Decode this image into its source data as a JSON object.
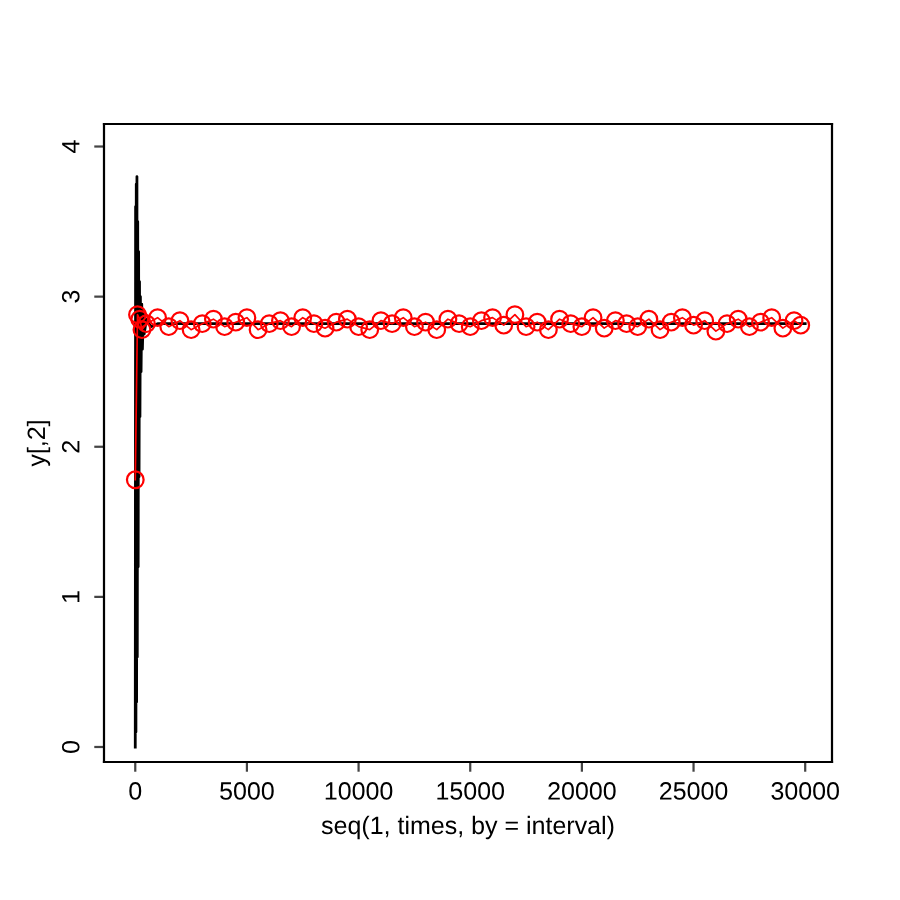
{
  "chart_data": {
    "type": "line",
    "xlabel": "seq(1, times, by = interval)",
    "ylabel": "y[,2]",
    "xlim": [
      -1400,
      31200
    ],
    "ylim": [
      -0.1,
      4.15
    ],
    "xticks": [
      0,
      5000,
      10000,
      15000,
      20000,
      25000,
      30000
    ],
    "yticks": [
      0,
      1,
      2,
      3,
      4
    ],
    "grid": false,
    "legend": false,
    "series": [
      {
        "color": "#000000",
        "marker": "none",
        "x": [
          0,
          15,
          30,
          45,
          60,
          75,
          90,
          110,
          130,
          150,
          170,
          190,
          210,
          230,
          260,
          290,
          320,
          360,
          400,
          500,
          700,
          1000,
          30000
        ],
        "values": [
          0.0,
          3.6,
          0.1,
          3.75,
          0.3,
          3.8,
          0.6,
          3.5,
          1.2,
          3.3,
          1.8,
          3.1,
          2.2,
          3.0,
          2.5,
          2.95,
          2.65,
          2.9,
          2.75,
          2.85,
          2.8,
          2.82,
          2.82
        ]
      },
      {
        "color": "#ff0000",
        "marker": "circle",
        "x": [
          1,
          100,
          200,
          300,
          500,
          1000,
          1500,
          2000,
          2500,
          3000,
          3500,
          4000,
          4500,
          5000,
          5500,
          6000,
          6500,
          7000,
          7500,
          8000,
          8500,
          9000,
          9500,
          10000,
          10500,
          11000,
          11500,
          12000,
          12500,
          13000,
          13500,
          14000,
          14500,
          15000,
          15500,
          16000,
          16500,
          17000,
          17500,
          18000,
          18500,
          19000,
          19500,
          20000,
          20500,
          21000,
          21500,
          22000,
          22500,
          23000,
          23500,
          24000,
          24500,
          25000,
          25500,
          26000,
          26500,
          27000,
          27500,
          28000,
          28500,
          29000,
          29500,
          29800
        ],
        "values": [
          1.78,
          2.88,
          2.85,
          2.78,
          2.82,
          2.86,
          2.8,
          2.84,
          2.78,
          2.82,
          2.85,
          2.8,
          2.83,
          2.86,
          2.78,
          2.82,
          2.84,
          2.8,
          2.86,
          2.82,
          2.79,
          2.83,
          2.85,
          2.8,
          2.78,
          2.84,
          2.82,
          2.86,
          2.8,
          2.83,
          2.78,
          2.85,
          2.82,
          2.8,
          2.84,
          2.86,
          2.81,
          2.88,
          2.8,
          2.83,
          2.78,
          2.85,
          2.82,
          2.8,
          2.86,
          2.79,
          2.84,
          2.82,
          2.8,
          2.85,
          2.78,
          2.83,
          2.86,
          2.81,
          2.84,
          2.77,
          2.82,
          2.85,
          2.8,
          2.83,
          2.86,
          2.79,
          2.84,
          2.81
        ]
      }
    ]
  }
}
